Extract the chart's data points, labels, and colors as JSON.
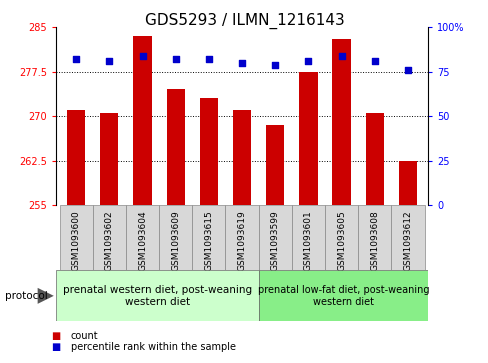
{
  "title": "GDS5293 / ILMN_1216143",
  "samples": [
    "GSM1093600",
    "GSM1093602",
    "GSM1093604",
    "GSM1093609",
    "GSM1093615",
    "GSM1093619",
    "GSM1093599",
    "GSM1093601",
    "GSM1093605",
    "GSM1093608",
    "GSM1093612"
  ],
  "counts": [
    271.0,
    270.5,
    283.5,
    274.5,
    273.0,
    271.0,
    268.5,
    277.5,
    283.0,
    270.5,
    262.5
  ],
  "percentiles": [
    82,
    81,
    84,
    82,
    82,
    80,
    79,
    81,
    84,
    81,
    76
  ],
  "y_min": 255,
  "y_max": 285,
  "y_ticks": [
    255,
    262.5,
    270,
    277.5,
    285
  ],
  "y2_ticks": [
    0,
    25,
    50,
    75,
    100
  ],
  "bar_color": "#cc0000",
  "dot_color": "#0000cc",
  "bar_bottom": 255,
  "grid_lines": [
    262.5,
    270,
    277.5
  ],
  "group1_label": "prenatal western diet, post-weaning\nwestern diet",
  "group2_label": "prenatal low-fat diet, post-weaning\nwestern diet",
  "group1_count": 6,
  "group2_count": 5,
  "protocol_label": "protocol",
  "legend_count_label": "count",
  "legend_pct_label": "percentile rank within the sample",
  "title_fontsize": 11,
  "tick_fontsize": 7,
  "sample_fontsize": 6.5,
  "group_fontsize": 7.5,
  "legend_fontsize": 7,
  "bg_plot": "#ffffff",
  "bg_sample": "#d8d8d8",
  "bg_group1": "#ccffcc",
  "bg_group2": "#88ee88"
}
